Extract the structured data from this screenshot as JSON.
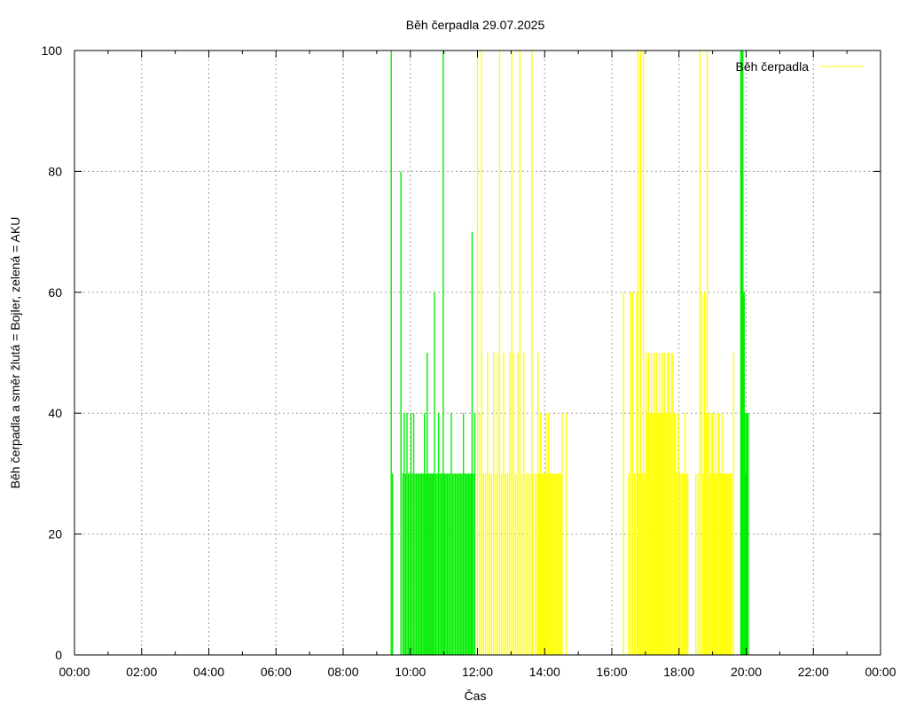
{
  "chart_data": {
    "type": "bar",
    "title": "Běh čerpadla 29.07.2025",
    "xlabel": "Čas",
    "ylabel": "Běh čerpadla a směr žlutá = Bojler, zelená = AKU",
    "x_unit": "hours",
    "xlim": [
      0,
      24
    ],
    "ylim": [
      0,
      100
    ],
    "x_ticks": [
      {
        "value": 0,
        "label": "00:00"
      },
      {
        "value": 2,
        "label": "02:00"
      },
      {
        "value": 4,
        "label": "04:00"
      },
      {
        "value": 6,
        "label": "06:00"
      },
      {
        "value": 8,
        "label": "08:00"
      },
      {
        "value": 10,
        "label": "10:00"
      },
      {
        "value": 12,
        "label": "12:00"
      },
      {
        "value": 14,
        "label": "14:00"
      },
      {
        "value": 16,
        "label": "16:00"
      },
      {
        "value": 18,
        "label": "18:00"
      },
      {
        "value": 20,
        "label": "20:00"
      },
      {
        "value": 22,
        "label": "22:00"
      },
      {
        "value": 24,
        "label": "00:00"
      }
    ],
    "y_ticks": [
      0,
      20,
      40,
      60,
      80,
      100
    ],
    "grid": true,
    "legend": {
      "position": "top-right",
      "entries": [
        {
          "label": "Běh čerpadla",
          "color": "#ffff00"
        }
      ]
    },
    "colors": {
      "AKU": "#00ee00",
      "Bojler": "#ffff00"
    },
    "series": [
      {
        "name": "AKU",
        "color": "#00ee00",
        "points": [
          [
            9.43,
            100
          ],
          [
            9.47,
            30
          ],
          [
            9.72,
            80
          ],
          [
            9.78,
            30
          ],
          [
            9.82,
            40
          ],
          [
            9.86,
            30
          ],
          [
            9.9,
            40
          ],
          [
            9.94,
            30
          ],
          [
            9.98,
            30
          ],
          [
            10.02,
            40
          ],
          [
            10.06,
            30
          ],
          [
            10.1,
            40
          ],
          [
            10.14,
            30
          ],
          [
            10.18,
            30
          ],
          [
            10.22,
            30
          ],
          [
            10.26,
            30
          ],
          [
            10.3,
            30
          ],
          [
            10.34,
            30
          ],
          [
            10.38,
            30
          ],
          [
            10.42,
            40
          ],
          [
            10.46,
            30
          ],
          [
            10.5,
            50
          ],
          [
            10.54,
            30
          ],
          [
            10.58,
            30
          ],
          [
            10.62,
            30
          ],
          [
            10.66,
            30
          ],
          [
            10.7,
            30
          ],
          [
            10.72,
            60
          ],
          [
            10.76,
            30
          ],
          [
            10.8,
            30
          ],
          [
            10.84,
            40
          ],
          [
            10.88,
            30
          ],
          [
            10.92,
            30
          ],
          [
            10.96,
            30
          ],
          [
            10.98,
            100
          ],
          [
            11.02,
            30
          ],
          [
            11.06,
            30
          ],
          [
            11.1,
            30
          ],
          [
            11.14,
            30
          ],
          [
            11.18,
            30
          ],
          [
            11.22,
            40
          ],
          [
            11.26,
            30
          ],
          [
            11.3,
            30
          ],
          [
            11.34,
            30
          ],
          [
            11.38,
            30
          ],
          [
            11.42,
            30
          ],
          [
            11.46,
            30
          ],
          [
            11.5,
            30
          ],
          [
            11.54,
            30
          ],
          [
            11.58,
            40
          ],
          [
            11.62,
            30
          ],
          [
            11.66,
            30
          ],
          [
            11.7,
            30
          ],
          [
            11.74,
            30
          ],
          [
            11.78,
            30
          ],
          [
            11.82,
            30
          ],
          [
            11.84,
            70
          ],
          [
            11.88,
            30
          ],
          [
            11.92,
            40
          ],
          [
            19.84,
            100
          ],
          [
            19.86,
            100
          ],
          [
            19.88,
            80
          ],
          [
            19.9,
            100
          ],
          [
            19.92,
            60
          ],
          [
            19.94,
            60
          ],
          [
            19.96,
            40
          ],
          [
            19.98,
            30
          ],
          [
            20.0,
            40
          ],
          [
            20.02,
            40
          ],
          [
            20.04,
            30
          ],
          [
            20.06,
            40
          ]
        ]
      },
      {
        "name": "Bojler",
        "color": "#ffff00",
        "points": [
          [
            12.0,
            100
          ],
          [
            12.06,
            40
          ],
          [
            12.12,
            100
          ],
          [
            12.18,
            30
          ],
          [
            12.24,
            30
          ],
          [
            12.3,
            50
          ],
          [
            12.36,
            30
          ],
          [
            12.42,
            30
          ],
          [
            12.48,
            50
          ],
          [
            12.54,
            30
          ],
          [
            12.6,
            50
          ],
          [
            12.66,
            100
          ],
          [
            12.72,
            30
          ],
          [
            12.78,
            50
          ],
          [
            12.84,
            30
          ],
          [
            12.9,
            30
          ],
          [
            12.96,
            50
          ],
          [
            13.02,
            100
          ],
          [
            13.08,
            50
          ],
          [
            13.14,
            30
          ],
          [
            13.2,
            50
          ],
          [
            13.26,
            100
          ],
          [
            13.32,
            30
          ],
          [
            13.38,
            50
          ],
          [
            13.44,
            30
          ],
          [
            13.5,
            30
          ],
          [
            13.56,
            30
          ],
          [
            13.62,
            100
          ],
          [
            13.66,
            30
          ],
          [
            13.72,
            30
          ],
          [
            13.78,
            30
          ],
          [
            13.8,
            50
          ],
          [
            13.84,
            30
          ],
          [
            13.88,
            40
          ],
          [
            13.92,
            30
          ],
          [
            13.96,
            30
          ],
          [
            14.0,
            30
          ],
          [
            14.04,
            40
          ],
          [
            14.08,
            30
          ],
          [
            14.12,
            40
          ],
          [
            14.16,
            30
          ],
          [
            14.2,
            30
          ],
          [
            14.24,
            30
          ],
          [
            14.28,
            30
          ],
          [
            14.32,
            30
          ],
          [
            14.36,
            30
          ],
          [
            14.4,
            30
          ],
          [
            14.44,
            30
          ],
          [
            14.48,
            30
          ],
          [
            14.52,
            40
          ],
          [
            14.64,
            40
          ],
          [
            16.35,
            60
          ],
          [
            16.5,
            30
          ],
          [
            16.56,
            60
          ],
          [
            16.62,
            60
          ],
          [
            16.68,
            30
          ],
          [
            16.74,
            60
          ],
          [
            16.78,
            100
          ],
          [
            16.82,
            30
          ],
          [
            16.86,
            100
          ],
          [
            16.9,
            30
          ],
          [
            16.94,
            100
          ],
          [
            16.98,
            30
          ],
          [
            17.02,
            50
          ],
          [
            17.06,
            40
          ],
          [
            17.1,
            50
          ],
          [
            17.14,
            40
          ],
          [
            17.18,
            50
          ],
          [
            17.22,
            40
          ],
          [
            17.26,
            50
          ],
          [
            17.3,
            40
          ],
          [
            17.34,
            50
          ],
          [
            17.38,
            40
          ],
          [
            17.42,
            50
          ],
          [
            17.46,
            40
          ],
          [
            17.5,
            50
          ],
          [
            17.54,
            40
          ],
          [
            17.58,
            50
          ],
          [
            17.62,
            40
          ],
          [
            17.66,
            50
          ],
          [
            17.7,
            50
          ],
          [
            17.74,
            40
          ],
          [
            17.78,
            50
          ],
          [
            17.82,
            50
          ],
          [
            17.86,
            40
          ],
          [
            17.9,
            40
          ],
          [
            17.94,
            30
          ],
          [
            17.98,
            40
          ],
          [
            18.02,
            30
          ],
          [
            18.06,
            30
          ],
          [
            18.1,
            30
          ],
          [
            18.14,
            30
          ],
          [
            18.18,
            40
          ],
          [
            18.22,
            30
          ],
          [
            18.26,
            30
          ],
          [
            18.5,
            30
          ],
          [
            18.56,
            30
          ],
          [
            18.62,
            100
          ],
          [
            18.68,
            60
          ],
          [
            18.72,
            30
          ],
          [
            18.76,
            60
          ],
          [
            18.8,
            40
          ],
          [
            18.84,
            100
          ],
          [
            18.88,
            40
          ],
          [
            18.92,
            30
          ],
          [
            18.96,
            40
          ],
          [
            19.0,
            40
          ],
          [
            19.04,
            30
          ],
          [
            19.08,
            40
          ],
          [
            19.12,
            30
          ],
          [
            19.16,
            40
          ],
          [
            19.2,
            40
          ],
          [
            19.24,
            30
          ],
          [
            19.28,
            40
          ],
          [
            19.32,
            30
          ],
          [
            19.36,
            30
          ],
          [
            19.4,
            30
          ],
          [
            19.44,
            30
          ],
          [
            19.48,
            30
          ],
          [
            19.52,
            30
          ],
          [
            19.56,
            30
          ],
          [
            19.62,
            50
          ]
        ]
      }
    ]
  }
}
